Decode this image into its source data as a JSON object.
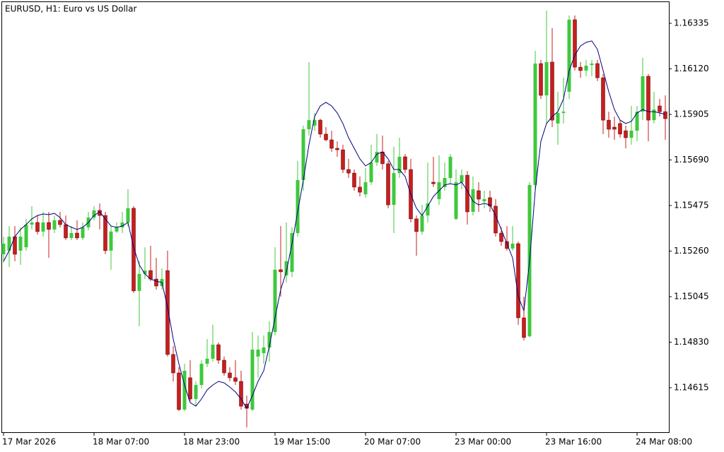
{
  "chart_data": {
    "type": "candlestick",
    "title": "EURUSD, H1:  Euro vs US Dollar",
    "categories": [
      "17 Mar 2026",
      null,
      null,
      null,
      null,
      null,
      null,
      null,
      null,
      null,
      null,
      null,
      null,
      null,
      null,
      null,
      "18 Mar 07:00",
      null,
      null,
      null,
      null,
      null,
      null,
      null,
      null,
      null,
      null,
      null,
      null,
      null,
      null,
      null,
      "18 Mar 23:00",
      null,
      null,
      null,
      null,
      null,
      null,
      null,
      null,
      null,
      null,
      null,
      null,
      null,
      null,
      null,
      "19 Mar 15:00",
      null,
      null,
      null,
      null,
      null,
      null,
      null,
      null,
      null,
      null,
      null,
      null,
      null,
      null,
      null,
      "20 Mar 07:00",
      null,
      null,
      null,
      null,
      null,
      null,
      null,
      null,
      null,
      null,
      null,
      null,
      null,
      null,
      null,
      "23 Mar 00:00",
      null,
      null,
      null,
      null,
      null,
      null,
      null,
      null,
      null,
      null,
      null,
      null,
      null,
      null,
      null,
      "23 Mar 16:00",
      null,
      null,
      null,
      null,
      null,
      null,
      null,
      null,
      null,
      null,
      null,
      null,
      null,
      null,
      null,
      "24 Mar 08:00",
      null,
      null,
      null,
      null,
      null
    ],
    "open": [
      1.15245,
      1.15262,
      1.15328,
      1.15262,
      1.15278,
      1.15385,
      1.15395,
      1.15352,
      1.15395,
      1.15362,
      1.15405,
      1.15385,
      1.15322,
      1.15345,
      1.15322,
      1.15372,
      1.15418,
      1.15452,
      1.15428,
      1.15262,
      1.15352,
      1.15372,
      1.15395,
      1.15462,
      1.15072,
      1.15152,
      1.15168,
      1.15128,
      1.15095,
      1.15168,
      1.14772,
      1.14685,
      1.14512,
      1.14662,
      1.14562,
      1.14628,
      1.14728,
      1.14752,
      1.14818,
      1.14745,
      1.14685,
      1.14662,
      1.14645,
      1.14538,
      1.14512,
      1.14762,
      1.14778,
      1.14805,
      1.14878,
      1.15172,
      1.15145,
      1.15162,
      1.15345,
      1.15595,
      1.15835,
      1.15852,
      1.15878,
      1.15812,
      1.15785,
      1.15745,
      1.15738,
      1.15645,
      1.15628,
      1.15562,
      1.15528,
      1.15585,
      1.15678,
      1.15728,
      1.15672,
      1.15478,
      1.15628,
      1.15705,
      1.15645,
      1.15412,
      1.15352,
      1.15428,
      1.15585,
      1.15505,
      1.15562,
      1.15605,
      1.15412,
      1.15585,
      1.15618,
      1.15445,
      1.15545,
      1.15495,
      1.15512,
      1.15472,
      1.15345,
      1.15305,
      1.15272,
      1.15295,
      1.14945,
      1.14858,
      1.15572,
      1.16145,
      1.15995,
      1.16152,
      1.15862,
      1.15912,
      1.16012,
      1.16352,
      1.16128,
      1.16112,
      1.16138,
      1.16145,
      1.16078,
      1.15878,
      1.15845,
      1.15862,
      1.15828,
      1.15795,
      1.15828,
      1.15918,
      1.16085,
      1.15878,
      1.15945,
      1.15918
    ],
    "high": [
      1.15328,
      1.15378,
      1.15378,
      1.15372,
      1.15412,
      1.15472,
      1.15428,
      1.15445,
      1.15445,
      1.15428,
      1.15445,
      1.15428,
      1.15378,
      1.15405,
      1.15395,
      1.15445,
      1.15472,
      1.15485,
      1.15445,
      1.15378,
      1.15395,
      1.15445,
      1.15552,
      1.15472,
      1.15212,
      1.15278,
      1.15285,
      1.15228,
      1.15178,
      1.15262,
      1.14812,
      1.14712,
      1.14728,
      1.14745,
      1.14645,
      1.14745,
      1.14845,
      1.14912,
      1.14828,
      1.14762,
      1.14712,
      1.14745,
      1.14695,
      1.14578,
      1.14878,
      1.14862,
      1.14862,
      1.14928,
      1.15278,
      1.15378,
      1.15395,
      1.15372,
      1.15685,
      1.15852,
      1.16152,
      1.15912,
      1.15885,
      1.15845,
      1.15828,
      1.15778,
      1.15762,
      1.15695,
      1.15645,
      1.15612,
      1.15652,
      1.15762,
      1.15812,
      1.15805,
      1.15685,
      1.15752,
      1.15795,
      1.15718,
      1.15695,
      1.15428,
      1.15478,
      1.15678,
      1.15705,
      1.15712,
      1.15678,
      1.15718,
      1.15645,
      1.15645,
      1.15638,
      1.15612,
      1.15585,
      1.15545,
      1.15545,
      1.15505,
      1.15372,
      1.15378,
      1.15378,
      1.15305,
      1.15045,
      1.15585,
      1.16205,
      1.16162,
      1.16395,
      1.16312,
      1.16012,
      1.16078,
      1.16372,
      1.16372,
      1.16152,
      1.16162,
      1.16162,
      1.16162,
      1.16095,
      1.15918,
      1.15895,
      1.15878,
      1.15852,
      1.15945,
      1.15945,
      1.16172,
      1.16095,
      1.16012,
      1.15978,
      1.15995
    ],
    "low": [
      1.15205,
      1.15185,
      1.15212,
      1.15195,
      1.15262,
      1.15362,
      1.15338,
      1.15328,
      1.15228,
      1.15345,
      1.15372,
      1.15312,
      1.15312,
      1.15312,
      1.15312,
      1.15358,
      1.15405,
      1.15362,
      1.15245,
      1.15172,
      1.15345,
      1.15345,
      1.15378,
      1.15062,
      1.14905,
      1.15128,
      1.15118,
      1.15078,
      1.15078,
      1.14762,
      1.14645,
      1.14505,
      1.14505,
      1.14552,
      1.14528,
      1.14612,
      1.14712,
      1.14738,
      1.14728,
      1.14672,
      1.14645,
      1.14628,
      1.14512,
      1.14428,
      1.14505,
      1.14662,
      1.14728,
      1.14738,
      1.14862,
      1.15045,
      1.15112,
      1.15138,
      1.15328,
      1.15545,
      1.15805,
      1.15828,
      1.15795,
      1.15778,
      1.15728,
      1.15705,
      1.15628,
      1.15605,
      1.15545,
      1.15518,
      1.15512,
      1.15572,
      1.15662,
      1.15645,
      1.15462,
      1.15345,
      1.15605,
      1.15628,
      1.15395,
      1.15238,
      1.15338,
      1.15395,
      1.15562,
      1.15478,
      1.15545,
      1.15578,
      1.15405,
      1.15552,
      1.15385,
      1.15428,
      1.15445,
      1.15462,
      1.15445,
      1.15328,
      1.15285,
      1.15262,
      1.15262,
      1.14912,
      1.14838,
      1.14852,
      1.15545,
      1.15978,
      1.15862,
      1.15845,
      1.15762,
      1.15862,
      1.15978,
      1.16112,
      1.16078,
      1.16085,
      1.16085,
      1.16062,
      1.15812,
      1.15795,
      1.15785,
      1.15795,
      1.15745,
      1.15762,
      1.15778,
      1.15878,
      1.15778,
      1.15862,
      1.15895,
      1.15785
    ],
    "close": [
      1.15295,
      1.15328,
      1.15245,
      1.15328,
      1.15385,
      1.15395,
      1.15352,
      1.15395,
      1.15362,
      1.15405,
      1.15385,
      1.15322,
      1.15345,
      1.15322,
      1.15372,
      1.15418,
      1.15452,
      1.15428,
      1.15262,
      1.15352,
      1.15372,
      1.15395,
      1.15462,
      1.15072,
      1.15152,
      1.15168,
      1.15128,
      1.15095,
      1.15128,
      1.14772,
      1.14685,
      1.14512,
      1.14695,
      1.14562,
      1.14628,
      1.14728,
      1.14752,
      1.14818,
      1.14745,
      1.14685,
      1.14662,
      1.14645,
      1.14528,
      1.14518,
      1.14795,
      1.14795,
      1.14805,
      1.14878,
      1.15172,
      1.15162,
      1.15212,
      1.15345,
      1.15595,
      1.15835,
      1.15878,
      1.15878,
      1.15812,
      1.15785,
      1.15745,
      1.15738,
      1.15645,
      1.15628,
      1.15562,
      1.15538,
      1.15585,
      1.15678,
      1.15728,
      1.15672,
      1.15478,
      1.15628,
      1.15705,
      1.15645,
      1.15412,
      1.15352,
      1.15428,
      1.15485,
      1.15578,
      1.15585,
      1.15605,
      1.15705,
      1.15585,
      1.15618,
      1.15445,
      1.15552,
      1.15505,
      1.15505,
      1.15472,
      1.15345,
      1.15305,
      1.15272,
      1.15295,
      1.14945,
      1.14852,
      1.15572,
      1.16145,
      1.15995,
      1.16152,
      1.15878,
      1.15912,
      1.15918,
      1.16352,
      1.16128,
      1.16112,
      1.16135,
      1.16145,
      1.16078,
      1.15878,
      1.15835,
      1.15835,
      1.15812,
      1.15795,
      1.15828,
      1.15918,
      1.16085,
      1.15878,
      1.15928,
      1.15918,
      1.15885
    ],
    "up_color": "#3fc83c",
    "down_color": "#c81e1e",
    "moving_average": {
      "color": "#000080",
      "values": [
        1.15212,
        1.15262,
        1.15328,
        1.15362,
        1.15385,
        1.15412,
        1.15428,
        1.15435,
        1.15432,
        1.15438,
        1.15418,
        1.15385,
        1.15372,
        1.15362,
        1.15372,
        1.15395,
        1.15428,
        1.15445,
        1.15412,
        1.15378,
        1.15372,
        1.15378,
        1.15395,
        1.15278,
        1.15195,
        1.15152,
        1.15128,
        1.15118,
        1.15112,
        1.14995,
        1.14845,
        1.14728,
        1.14628,
        1.14545,
        1.14528,
        1.14562,
        1.14605,
        1.14628,
        1.14645,
        1.14638,
        1.14618,
        1.14595,
        1.14562,
        1.14518,
        1.14578,
        1.14645,
        1.14695,
        1.14812,
        1.14945,
        1.15078,
        1.15162,
        1.15295,
        1.15445,
        1.15595,
        1.15762,
        1.15895,
        1.15945,
        1.15962,
        1.15945,
        1.15912,
        1.15862,
        1.15795,
        1.15745,
        1.15695,
        1.15662,
        1.15678,
        1.15718,
        1.15728,
        1.15695,
        1.15645,
        1.15645,
        1.15612,
        1.15528,
        1.15462,
        1.15428,
        1.15472,
        1.15518,
        1.15545,
        1.15572,
        1.15578,
        1.15572,
        1.15585,
        1.15545,
        1.15495,
        1.15478,
        1.15485,
        1.15478,
        1.15428,
        1.15362,
        1.15295,
        1.15228,
        1.15045,
        1.14978,
        1.15212,
        1.15545,
        1.15778,
        1.15862,
        1.15895,
        1.15918,
        1.15978,
        1.16112,
        1.16185,
        1.16228,
        1.16245,
        1.16252,
        1.16212,
        1.16112,
        1.16012,
        1.15928,
        1.15878,
        1.15862,
        1.15872,
        1.15912,
        1.15928,
        1.15918,
        1.15918,
        1.15912,
        1.15905
      ]
    },
    "ylim": [
      1.14405,
      1.16435
    ],
    "yticks": [
      1.16335,
      {
        "value": 1.1612,
        "label": "1.16120"
      },
      1.15905,
      {
        "value": 1.1569,
        "label": "1.15690"
      },
      1.15475,
      {
        "value": 1.1526,
        "label": "1.15260"
      },
      1.15045,
      {
        "value": 1.1483,
        "label": "1.14830"
      },
      1.14615
    ]
  }
}
